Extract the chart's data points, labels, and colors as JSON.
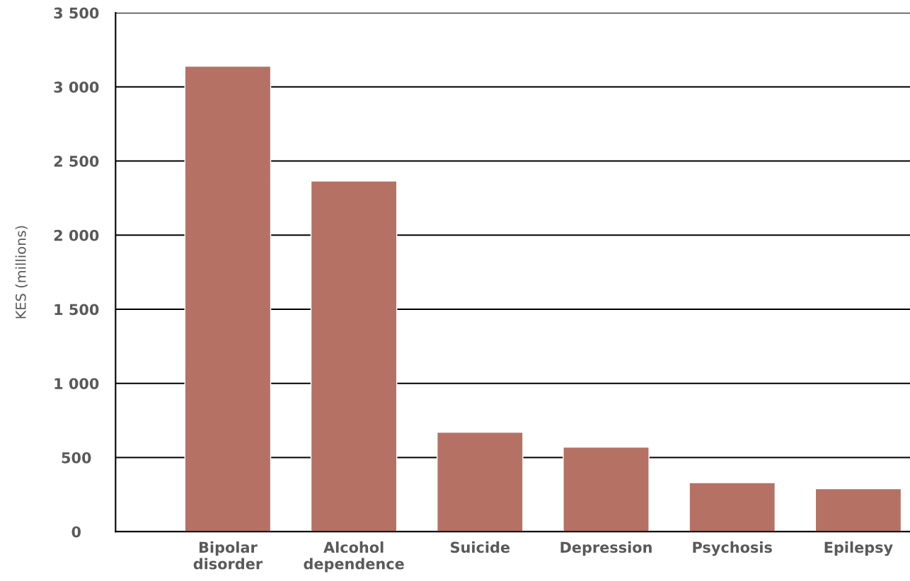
{
  "chart_data": {
    "type": "bar",
    "ylabel": "KES (millions)",
    "categories": [
      "Bipolar\ndisorder",
      "Alcohol\ndependence",
      "Suicide",
      "Depression",
      "Psychosis",
      "Epilepsy"
    ],
    "values": [
      3140,
      2365,
      670,
      570,
      330,
      290
    ],
    "color": "#b57164",
    "ylim": [
      0,
      3500
    ],
    "yticks": [
      {
        "value": 0,
        "label": "0"
      },
      {
        "value": 500,
        "label": "500"
      },
      {
        "value": 1000,
        "label": "1 000"
      },
      {
        "value": 1500,
        "label": "1 500"
      },
      {
        "value": 2000,
        "label": "2 000"
      },
      {
        "value": 2500,
        "label": "2 500"
      },
      {
        "value": 3000,
        "label": "3 000"
      },
      {
        "value": 3500,
        "label": "3 500"
      }
    ],
    "grid": "y",
    "legend": false
  }
}
